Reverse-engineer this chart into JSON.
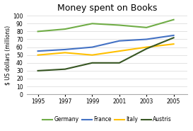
{
  "title": "Money spent on Books",
  "ylabel": "$ US dollars (millions)",
  "years": [
    1995,
    1997,
    1999,
    2001,
    2003,
    2005
  ],
  "series": {
    "Germany": {
      "values": [
        80,
        83,
        90,
        88,
        85,
        95
      ],
      "color": "#70ad47",
      "linewidth": 1.5
    },
    "France": {
      "values": [
        55,
        57,
        60,
        68,
        70,
        75
      ],
      "color": "#4472c4",
      "linewidth": 1.5
    },
    "Italy": {
      "values": [
        50,
        53,
        50,
        55,
        60,
        64
      ],
      "color": "#ffc000",
      "linewidth": 1.5
    },
    "Austris": {
      "values": [
        30,
        32,
        40,
        40,
        58,
        72
      ],
      "color": "#375623",
      "linewidth": 1.5
    }
  },
  "ylim": [
    0,
    100
  ],
  "yticks": [
    0,
    10,
    20,
    30,
    40,
    50,
    60,
    70,
    80,
    90,
    100
  ],
  "xticks": [
    1995,
    1997,
    1999,
    2001,
    2003,
    2005
  ],
  "legend_order": [
    "Germany",
    "France",
    "Italy",
    "Austris"
  ],
  "background_color": "#ffffff",
  "title_fontsize": 9,
  "ylabel_fontsize": 5.5,
  "tick_fontsize": 5.5,
  "legend_fontsize": 5.5
}
